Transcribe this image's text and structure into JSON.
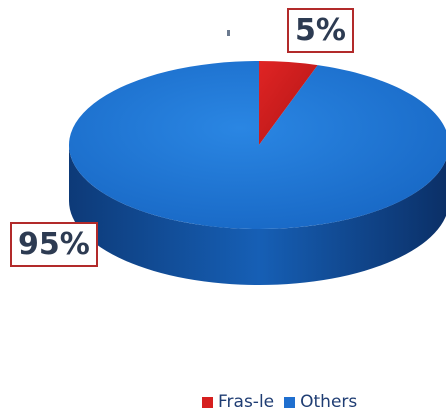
{
  "chart_data": {
    "type": "pie",
    "style": "3d",
    "categories": [
      "Fras-le",
      "Others"
    ],
    "values": [
      5,
      95
    ],
    "data_labels": [
      "5%",
      "95%"
    ],
    "colors": [
      "#d61f1f",
      "#1f6fcf"
    ],
    "legend_position": "bottom"
  },
  "legend": {
    "items": [
      {
        "label": "Fras-le",
        "color": "#d61f1f"
      },
      {
        "label": "Others",
        "color": "#1f6fcf"
      }
    ]
  }
}
